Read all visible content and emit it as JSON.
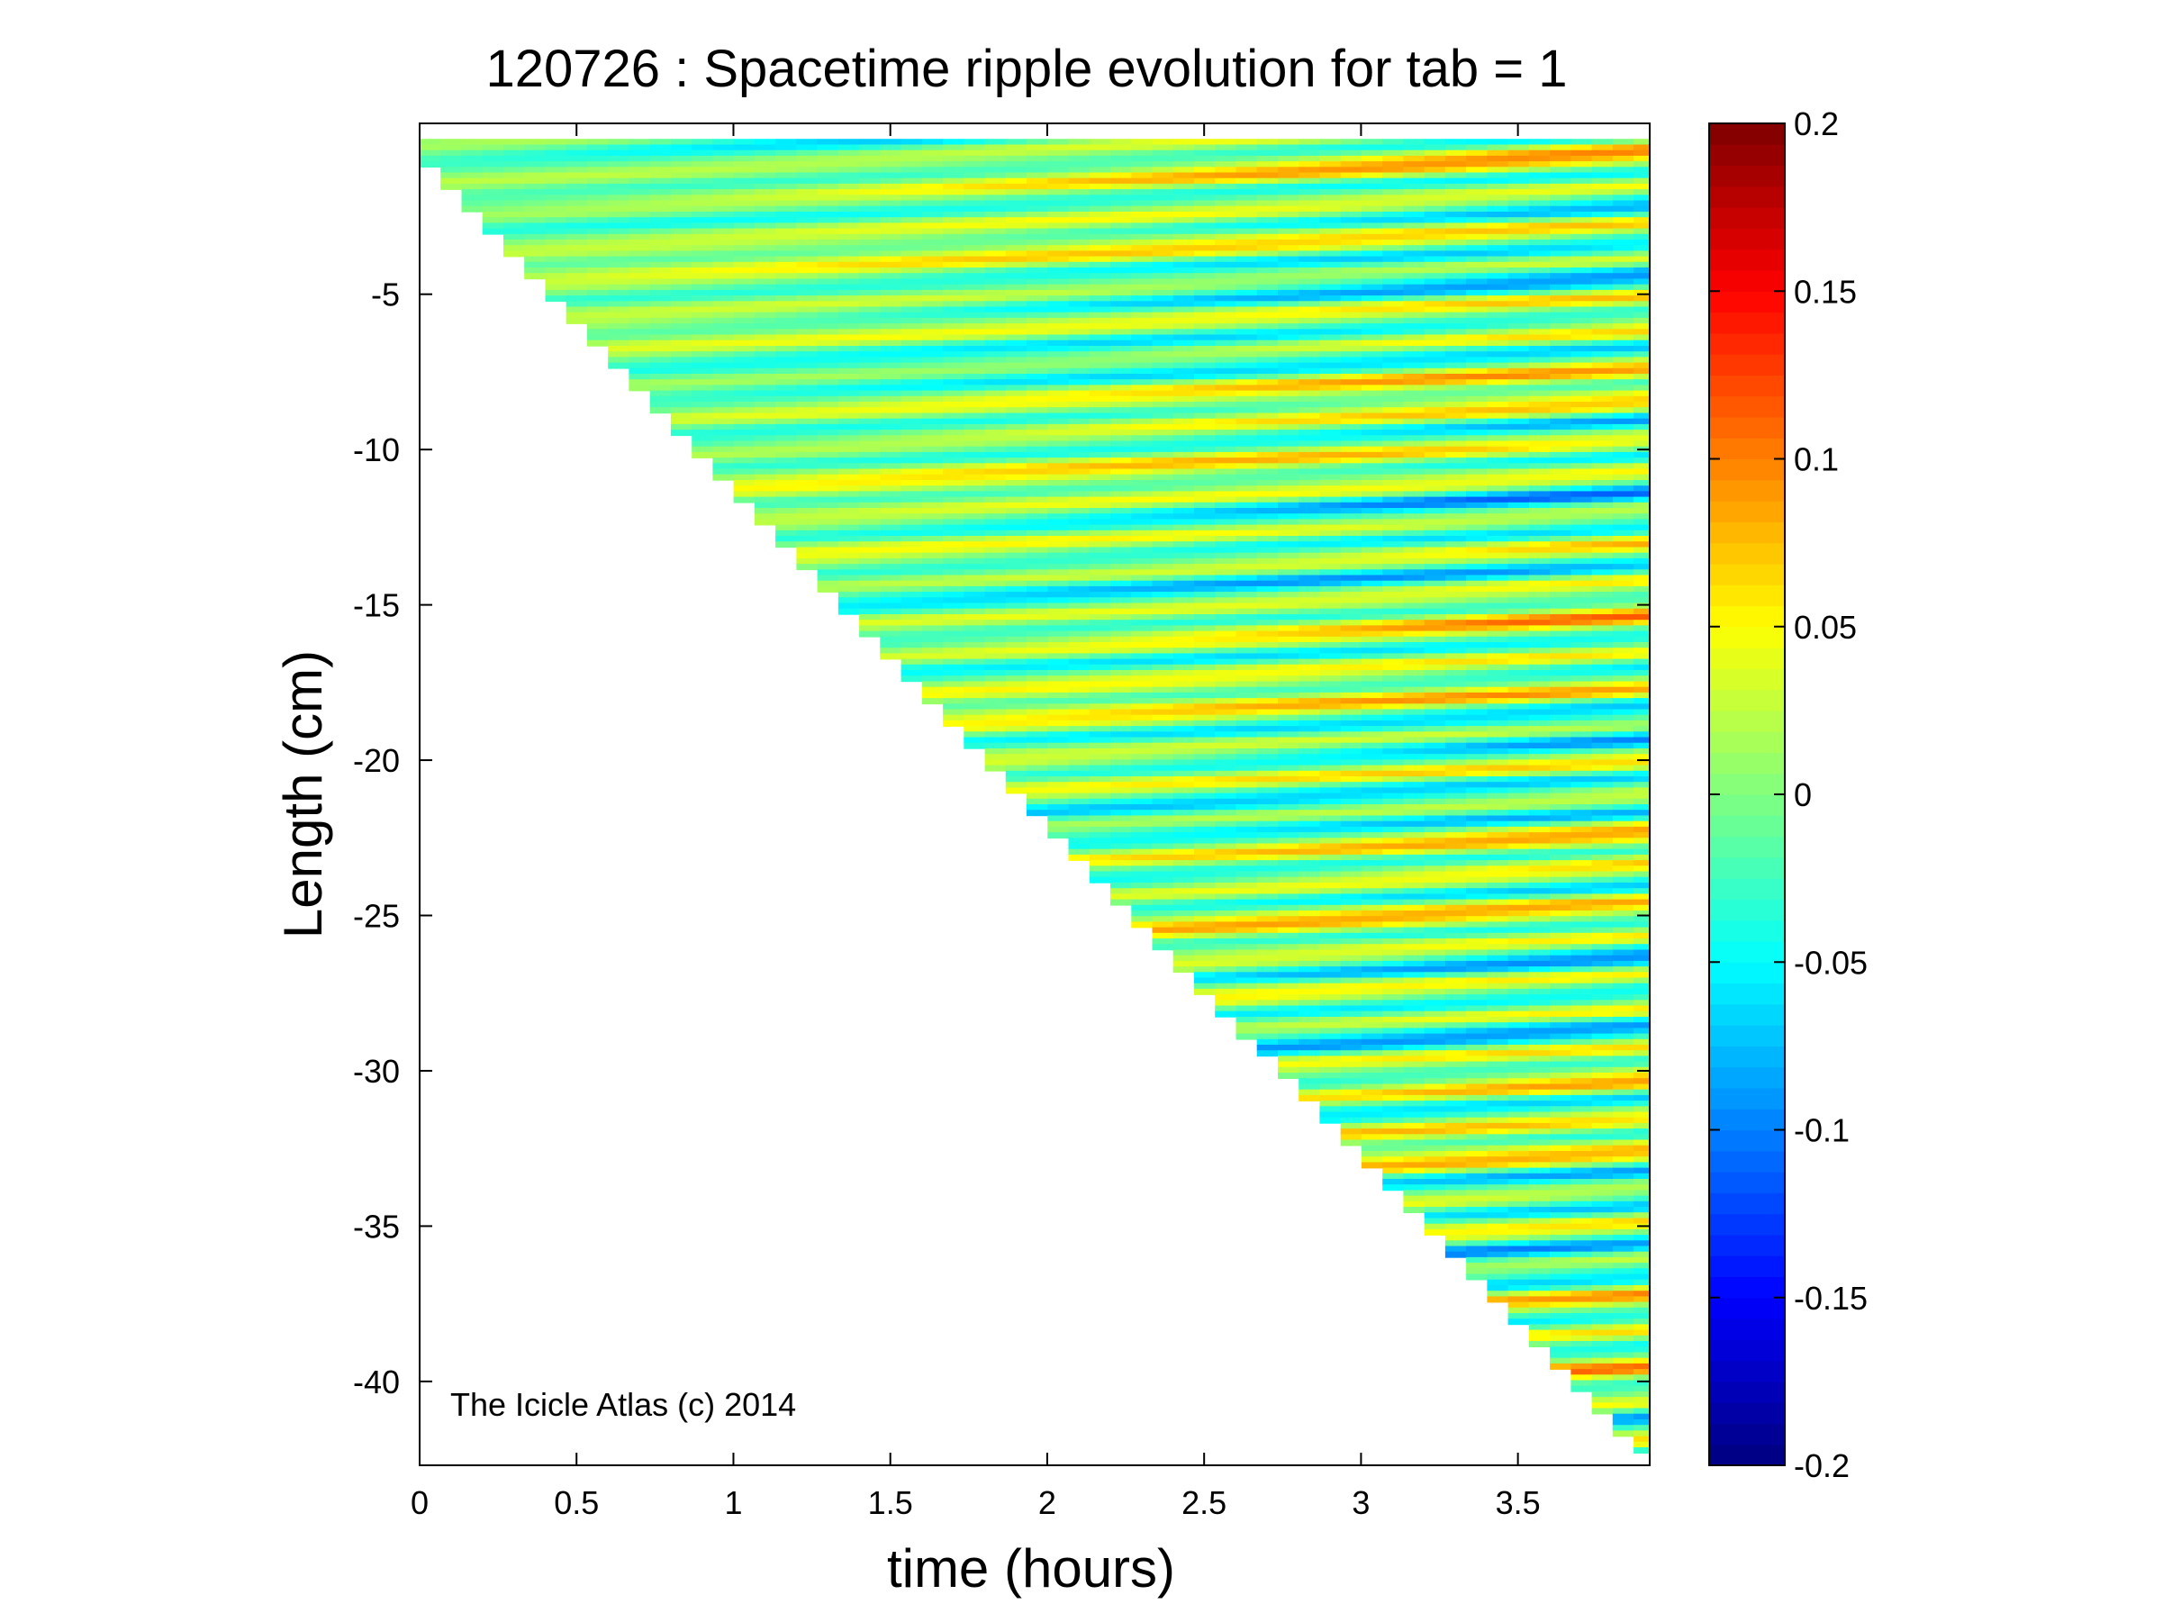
{
  "chart_data": {
    "type": "heatmap",
    "title": "120726 : Spacetime ripple evolution for tab = 1",
    "xlabel": "time (hours)",
    "ylabel": "Length (cm)",
    "xlim": [
      0,
      3.92
    ],
    "ylim": [
      -42.7,
      0.5
    ],
    "x_ticks": [
      0,
      0.5,
      1,
      1.5,
      2,
      2.5,
      3,
      3.5
    ],
    "x_tick_labels": [
      "0",
      "0.5",
      "1",
      "1.5",
      "2",
      "2.5",
      "3",
      "3.5"
    ],
    "y_ticks": [
      -5,
      -10,
      -15,
      -20,
      -25,
      -30,
      -35,
      -40
    ],
    "y_tick_labels": [
      "-5",
      "-10",
      "-15",
      "-20",
      "-25",
      "-30",
      "-35",
      "-40"
    ],
    "colormap": "jet",
    "clim": [
      -0.2,
      0.2
    ],
    "colorbar_ticks": [
      0.2,
      0.15,
      0.1,
      0.05,
      0,
      -0.05,
      -0.1,
      -0.15,
      -0.2
    ],
    "colorbar_tick_labels": [
      "0.2",
      "0.15",
      "0.1",
      "0.05",
      "0",
      "-0.05",
      "-0.1",
      "-0.15",
      "-0.2"
    ],
    "annotation": "The Icicle Atlas (c) 2014",
    "data_extent": {
      "description_points": [
        [
          0,
          0
        ],
        [
          3.9,
          -42
        ]
      ],
      "time_step_hours": 0.0667
    },
    "grid": false,
    "colorbar_position": "right"
  }
}
